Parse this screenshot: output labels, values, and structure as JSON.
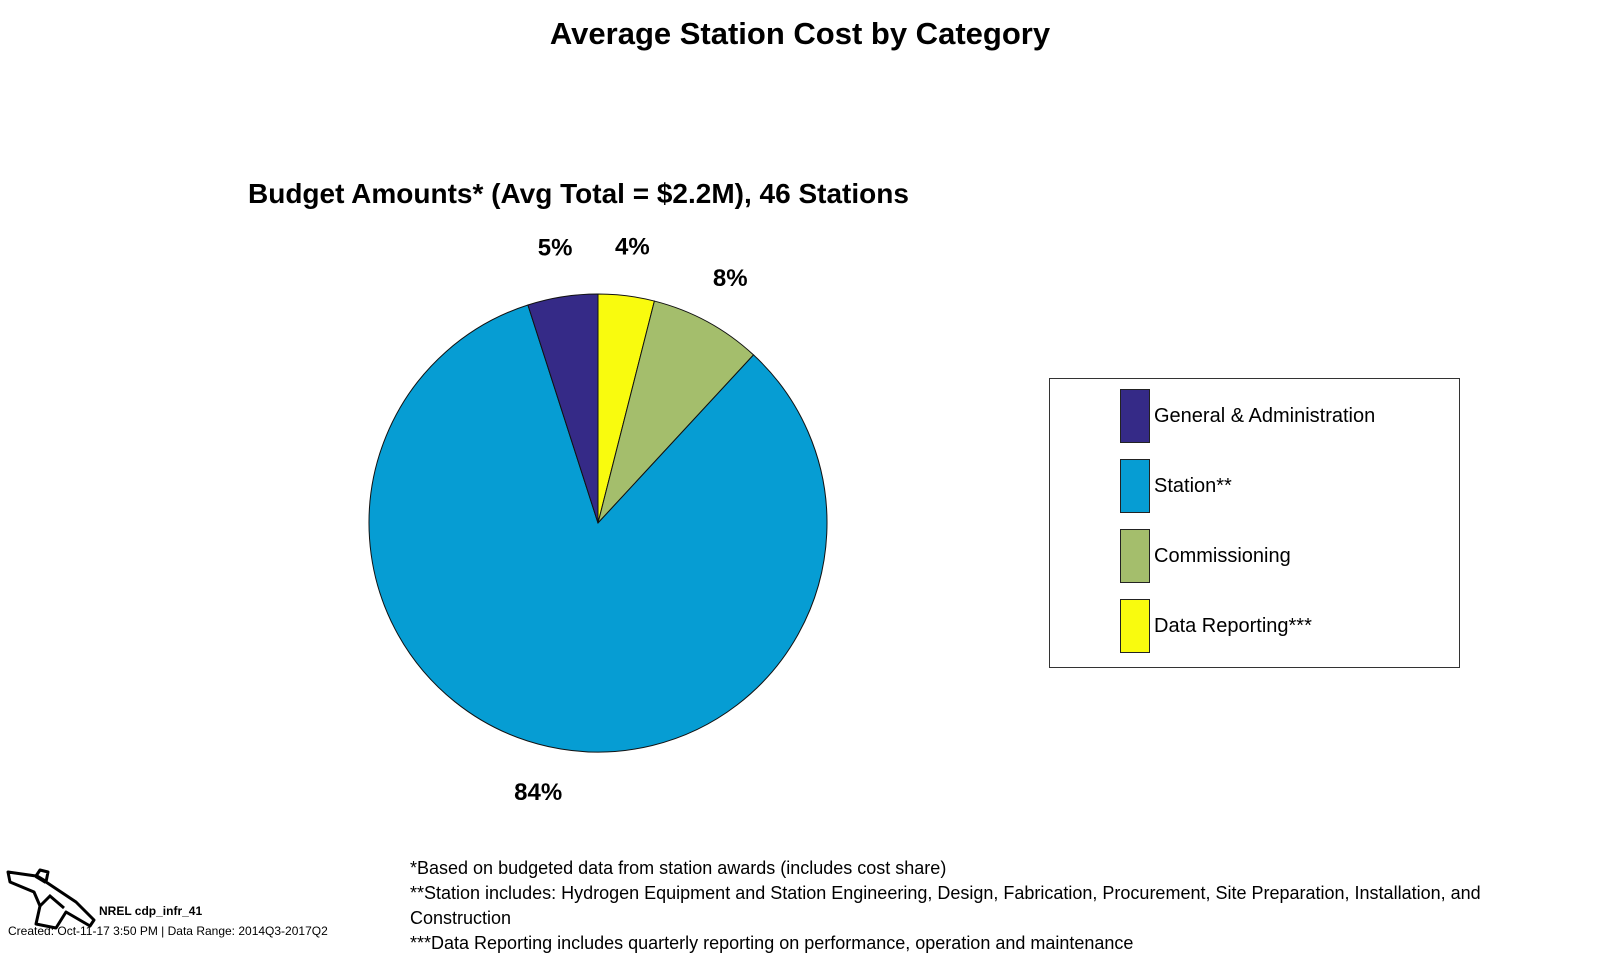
{
  "chart_data": {
    "type": "pie",
    "title": "Average Station Cost by Category",
    "subtitle": "Budget Amounts* (Avg Total = $2.2M), 46 Stations",
    "categories": [
      "General & Administration",
      "Station**",
      "Commissioning",
      "Data Reporting***"
    ],
    "values": [
      5,
      84,
      8,
      4
    ],
    "value_labels": [
      "5%",
      "84%",
      "8%",
      "4%"
    ],
    "colors": [
      "#352a87",
      "#069dd3",
      "#a4be6c",
      "#f9fb0e"
    ],
    "legend_placement": "right"
  },
  "footer": {
    "logo_id": "NREL cdp_infr_41",
    "created": "Created: Oct-11-17  3:50 PM | Data Range: 2014Q3-2017Q2",
    "footnotes": [
      "*Based on budgeted data from station awards (includes cost share)",
      "**Station includes: Hydrogen Equipment and Station Engineering, Design, Fabrication, Procurement, Site Preparation, Installation, and Construction",
      "***Data Reporting includes quarterly reporting on performance, operation and maintenance"
    ]
  },
  "icons": {
    "logo": "fuel-nozzle-icon"
  }
}
